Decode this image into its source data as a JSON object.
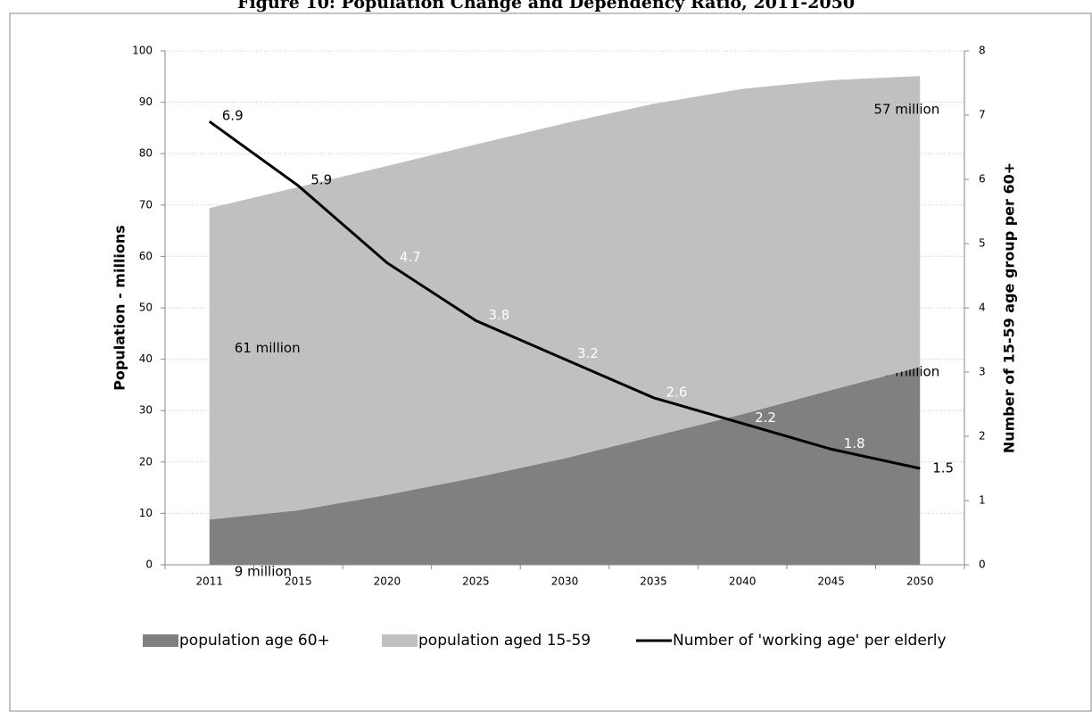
{
  "chart_data": {
    "type": "stacked-area-line",
    "title": "Figure 10: Population Change and Dependency Ratio, 2011-2050",
    "y_label": "Population - millions",
    "y2_label": "Number of 15-59 age group per 60+",
    "categories": [
      "2011",
      "2015",
      "2020",
      "2025",
      "2030",
      "2035",
      "2040",
      "2045",
      "2050"
    ],
    "series": [
      {
        "name": "population age 60+",
        "type": "area",
        "color": "#808080",
        "values": [
          8.8,
          10.6,
          13.6,
          17.0,
          20.7,
          25.0,
          29.3,
          34.0,
          38.5
        ],
        "value_labels": [
          "9 million",
          null,
          null,
          null,
          null,
          null,
          null,
          null,
          "39 million"
        ]
      },
      {
        "name": "population aged 15-59",
        "type": "area",
        "color": "#c0c0c0",
        "values": [
          60.6,
          62.9,
          64.0,
          64.8,
          65.2,
          64.7,
          63.3,
          60.3,
          56.6
        ],
        "value_labels": [
          "61 million",
          null,
          null,
          null,
          null,
          null,
          null,
          null,
          "57 million"
        ]
      },
      {
        "name": "Number of 'working age' per elderly",
        "type": "line",
        "color": "#000000",
        "axis": "y2",
        "values": [
          6.9,
          5.9,
          4.7,
          3.8,
          3.2,
          2.6,
          2.2,
          1.8,
          1.5
        ]
      }
    ],
    "ylim": [
      0,
      100
    ],
    "yticks": [
      0,
      10,
      20,
      30,
      40,
      50,
      60,
      70,
      80,
      90,
      100
    ],
    "y2lim": [
      0,
      8
    ],
    "y2ticks": [
      0,
      1,
      2,
      3,
      4,
      5,
      6,
      7,
      8
    ],
    "grid": true,
    "legend": "bottom"
  }
}
